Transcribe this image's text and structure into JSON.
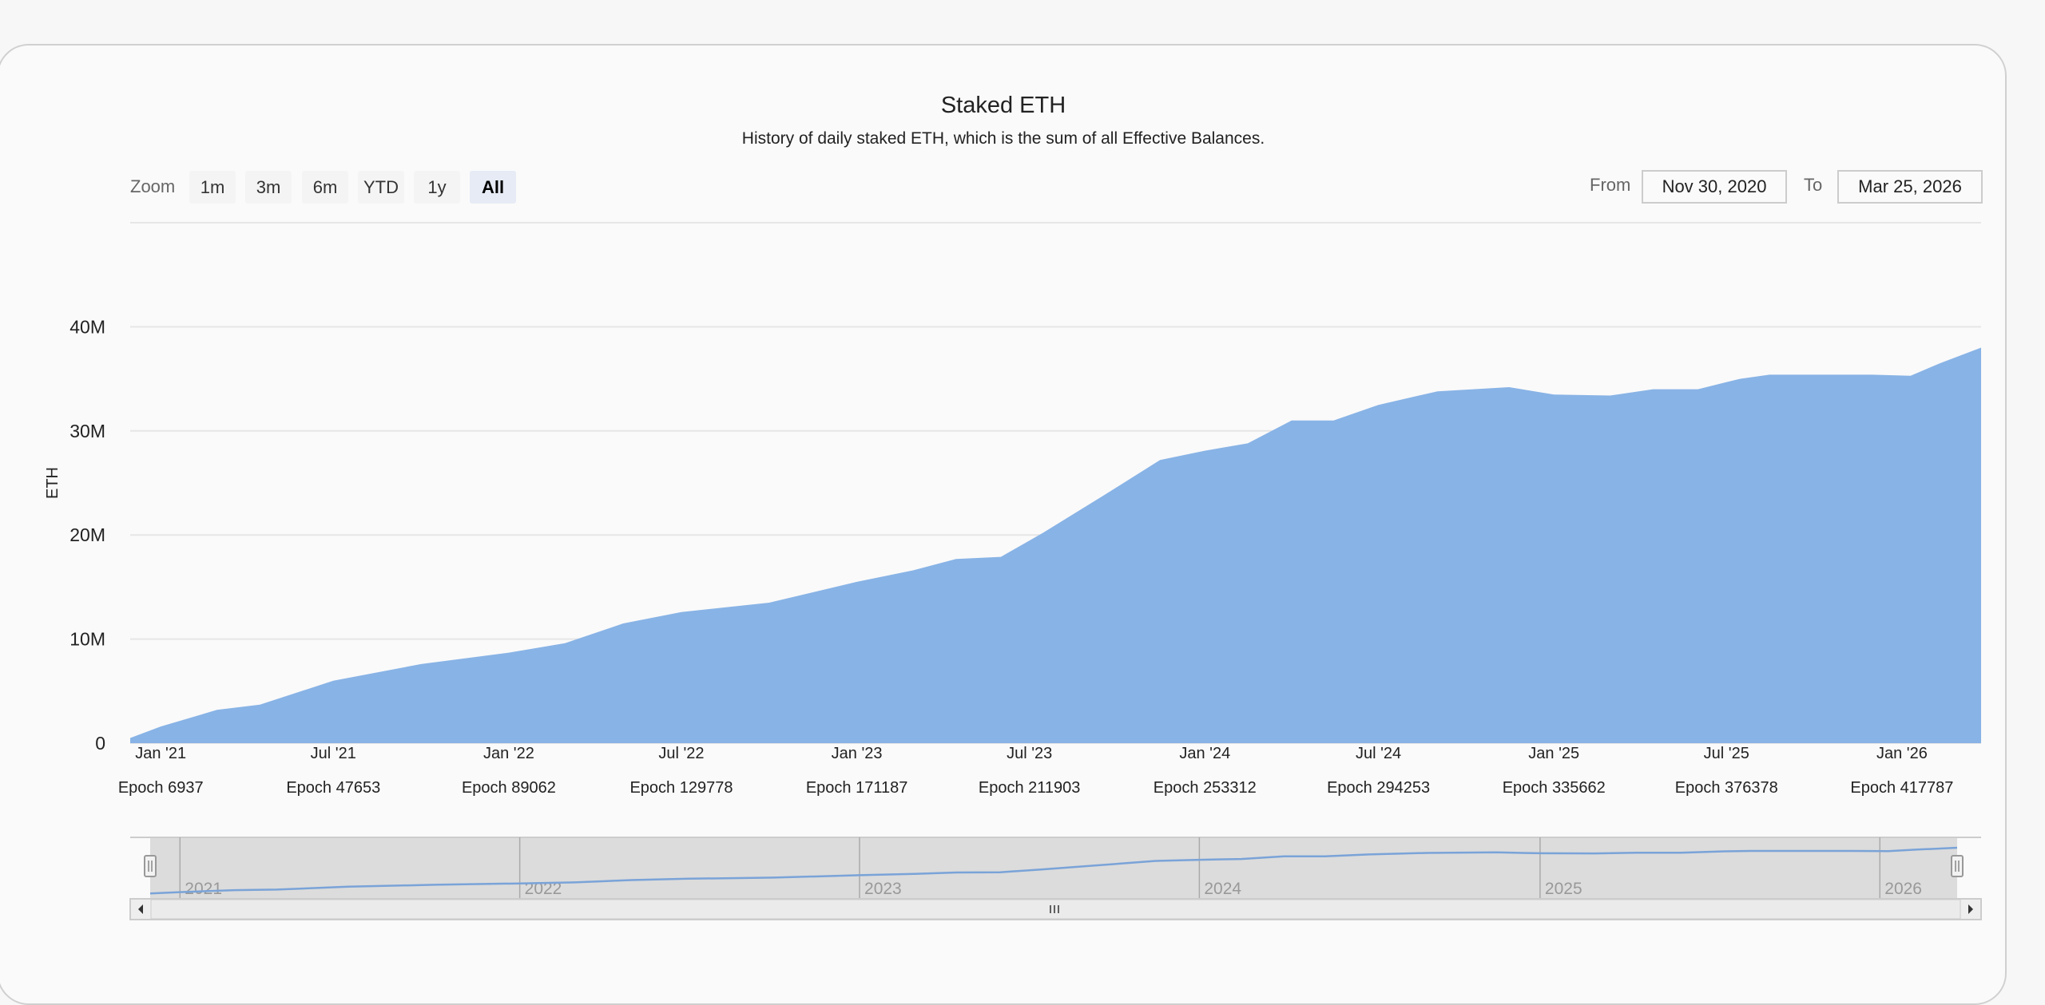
{
  "header": {
    "title": "Staked ETH",
    "subtitle": "History of daily staked ETH, which is the sum of all Effective Balances."
  },
  "range_selector": {
    "zoom_label": "Zoom",
    "buttons": [
      "1m",
      "3m",
      "6m",
      "YTD",
      "1y",
      "All"
    ],
    "active": "All",
    "from_label": "From",
    "from_value": "Nov 30, 2020",
    "to_label": "To",
    "to_value": "Mar 25, 2026"
  },
  "colors": {
    "area": "#88b3e6",
    "navigator_line": "#7aa3d8",
    "grid": "#e6e6e6"
  },
  "chart_data": {
    "type": "area",
    "title": "Staked ETH",
    "ylabel": "ETH",
    "ylim": [
      0,
      50000000
    ],
    "yticks": [
      {
        "value": 0,
        "label": "0"
      },
      {
        "value": 10000000,
        "label": "10M"
      },
      {
        "value": 20000000,
        "label": "20M"
      },
      {
        "value": 30000000,
        "label": "30M"
      },
      {
        "value": 40000000,
        "label": "40M"
      }
    ],
    "xlim": [
      "2020-11-30",
      "2026-03-25"
    ],
    "xticks": [
      {
        "date": "2021-01-01",
        "label": "Jan '21",
        "epoch": "Epoch 6937"
      },
      {
        "date": "2021-07-01",
        "label": "Jul '21",
        "epoch": "Epoch 47653"
      },
      {
        "date": "2022-01-01",
        "label": "Jan '22",
        "epoch": "Epoch 89062"
      },
      {
        "date": "2022-07-01",
        "label": "Jul '22",
        "epoch": "Epoch 129778"
      },
      {
        "date": "2023-01-01",
        "label": "Jan '23",
        "epoch": "Epoch 171187"
      },
      {
        "date": "2023-07-01",
        "label": "Jul '23",
        "epoch": "Epoch 211903"
      },
      {
        "date": "2024-01-01",
        "label": "Jan '24",
        "epoch": "Epoch 253312"
      },
      {
        "date": "2024-07-01",
        "label": "Jul '24",
        "epoch": "Epoch 294253"
      },
      {
        "date": "2025-01-01",
        "label": "Jan '25",
        "epoch": "Epoch 335662"
      },
      {
        "date": "2025-07-01",
        "label": "Jul '25",
        "epoch": "Epoch 376378"
      },
      {
        "date": "2026-01-01",
        "label": "Jan '26",
        "epoch": "Epoch 417787"
      }
    ],
    "points": [
      [
        "2020-11-30",
        500000
      ],
      [
        "2021-01-01",
        1600000
      ],
      [
        "2021-03-01",
        3200000
      ],
      [
        "2021-04-15",
        3700000
      ],
      [
        "2021-07-01",
        6000000
      ],
      [
        "2021-10-01",
        7600000
      ],
      [
        "2022-01-01",
        8700000
      ],
      [
        "2022-03-01",
        9600000
      ],
      [
        "2022-05-01",
        11500000
      ],
      [
        "2022-07-01",
        12600000
      ],
      [
        "2022-10-01",
        13500000
      ],
      [
        "2023-01-01",
        15500000
      ],
      [
        "2023-03-01",
        16600000
      ],
      [
        "2023-04-15",
        17700000
      ],
      [
        "2023-06-01",
        17900000
      ],
      [
        "2023-07-15",
        20200000
      ],
      [
        "2023-09-15",
        23700000
      ],
      [
        "2023-11-15",
        27200000
      ],
      [
        "2024-01-01",
        28100000
      ],
      [
        "2024-02-15",
        28800000
      ],
      [
        "2024-04-01",
        31000000
      ],
      [
        "2024-05-15",
        31000000
      ],
      [
        "2024-07-01",
        32500000
      ],
      [
        "2024-09-01",
        33800000
      ],
      [
        "2024-11-15",
        34200000
      ],
      [
        "2025-01-01",
        33500000
      ],
      [
        "2025-03-01",
        33400000
      ],
      [
        "2025-04-15",
        34000000
      ],
      [
        "2025-06-01",
        34000000
      ],
      [
        "2025-07-15",
        35000000
      ],
      [
        "2025-08-15",
        35400000
      ],
      [
        "2025-12-01",
        35400000
      ],
      [
        "2026-01-10",
        35300000
      ],
      [
        "2026-02-10",
        36500000
      ],
      [
        "2026-03-25",
        38000000
      ]
    ],
    "navigator": {
      "years": [
        "2021",
        "2022",
        "2023",
        "2024",
        "2025",
        "2026"
      ]
    },
    "grid": true,
    "legend": "none"
  }
}
